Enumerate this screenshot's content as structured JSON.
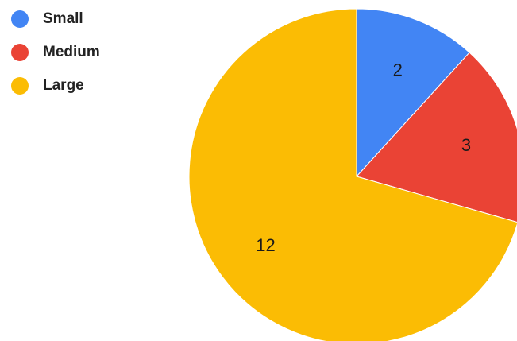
{
  "chart_data": {
    "type": "pie",
    "title": "",
    "slices": [
      {
        "name": "Small",
        "value": 2,
        "color": "#4285F4"
      },
      {
        "name": "Medium",
        "value": 3,
        "color": "#EA4335"
      },
      {
        "name": "Large",
        "value": 12,
        "color": "#FBBC04"
      }
    ],
    "legend_position": "top-left",
    "start_angle": "top",
    "direction": "clockwise"
  }
}
